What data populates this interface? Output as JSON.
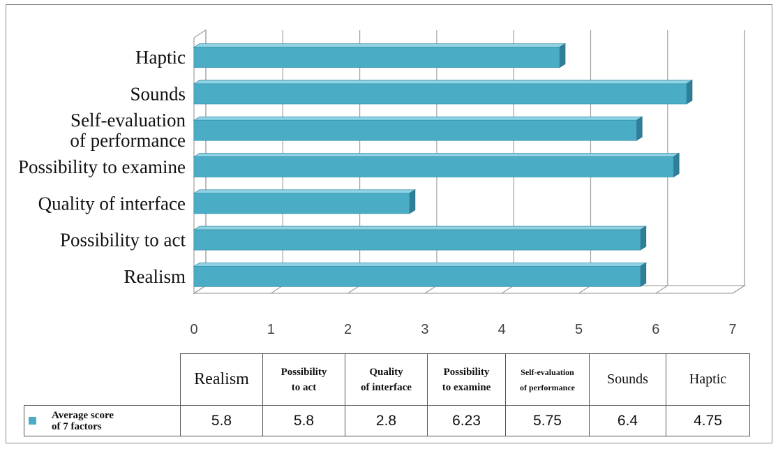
{
  "chart_data": {
    "type": "bar",
    "orientation": "horizontal",
    "categories": [
      "Realism",
      "Possibility to act",
      "Quality of interface",
      "Possibility to examine",
      "Self-evaluation of performance",
      "Sounds",
      "Haptic"
    ],
    "category_labels": [
      [
        "Realism"
      ],
      [
        "Possibility to act"
      ],
      [
        "Quality of interface"
      ],
      [
        "Possibility to examine"
      ],
      [
        "Self-evaluation",
        "of performance"
      ],
      [
        "Sounds"
      ],
      [
        "Haptic"
      ]
    ],
    "series": [
      {
        "name": "Average score of 7 factors",
        "values": [
          5.8,
          5.8,
          2.8,
          6.23,
          5.75,
          6.4,
          4.75
        ],
        "color": "#4bacc6"
      }
    ],
    "x_ticks": [
      "0",
      "1",
      "2",
      "3",
      "4",
      "5",
      "6",
      "7"
    ],
    "xlim": [
      0,
      7
    ],
    "grid": true,
    "style": "3d",
    "legend_position": "data-table",
    "title": "",
    "xlabel": "",
    "ylabel": ""
  },
  "data_table": {
    "headers": [
      [
        "Realism"
      ],
      [
        "Possibility",
        "to act"
      ],
      [
        "Quality",
        "of interface"
      ],
      [
        "Possibility",
        "to examine"
      ],
      [
        "Self-evaluation",
        "of performance"
      ],
      [
        "Sounds"
      ],
      [
        "Haptic"
      ]
    ],
    "legend_lines": [
      "Average score",
      "of 7 factors"
    ],
    "values": [
      "5.8",
      "5.8",
      "2.8",
      "6.23",
      "5.75",
      "6.4",
      "4.75"
    ]
  }
}
